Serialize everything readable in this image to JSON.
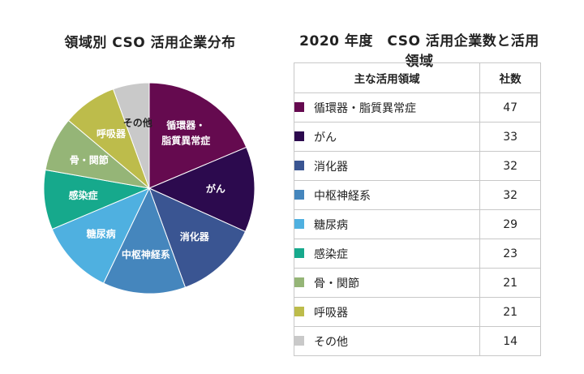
{
  "pie_title": "領域別 CSO 活用企業分布",
  "table_title": "2020 年度　CSO 活用企業数と活用領域",
  "table_header": {
    "area": "主な活用領域",
    "count": "社数"
  },
  "chart_data": {
    "type": "pie",
    "categories": [
      "循環器・脂質異常症",
      "がん",
      "消化器",
      "中枢神経系",
      "糖尿病",
      "感染症",
      "骨・関節",
      "呼吸器",
      "その他"
    ],
    "slice_labels": [
      "循環器・\n脂質異常症",
      "がん",
      "消化器",
      "中枢神経系",
      "糖尿病",
      "感染症",
      "骨・関節",
      "呼吸器",
      "その他"
    ],
    "values": [
      47,
      33,
      32,
      32,
      29,
      23,
      21,
      21,
      14
    ],
    "colors": [
      "#650a4f",
      "#2c0a4e",
      "#3a5592",
      "#4586bd",
      "#4fb0e0",
      "#16a98c",
      "#95b577",
      "#bdbc4b",
      "#c9c9c9"
    ],
    "label_colors": [
      "#ffffff",
      "#ffffff",
      "#ffffff",
      "#ffffff",
      "#ffffff",
      "#ffffff",
      "#ffffff",
      "#ffffff",
      "#222222"
    ],
    "start_angle_deg": 0,
    "direction": "clockwise"
  }
}
